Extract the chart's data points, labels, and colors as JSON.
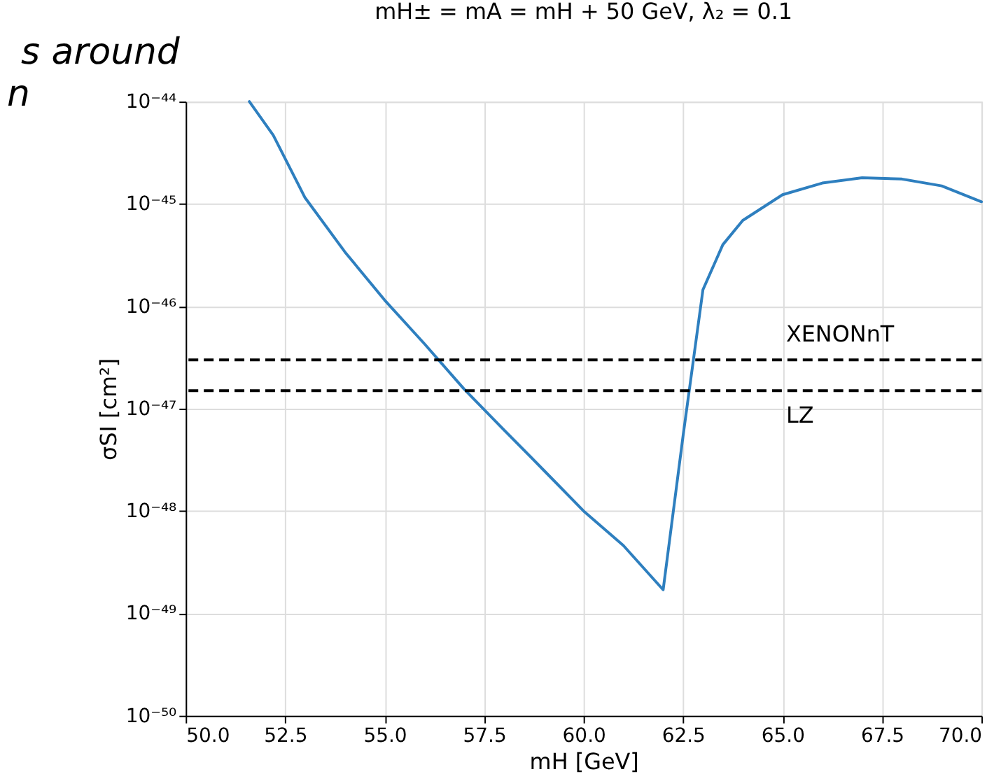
{
  "chart_data": {
    "type": "line",
    "title": "mH± = mA = mH + 50 GeV, λ₂ = 0.1",
    "xlabel": "mH [GeV]",
    "ylabel": "σSI [cm²]",
    "annotations": [
      "s around",
      "n"
    ],
    "x": [
      51.6,
      52.2,
      53.0,
      54.0,
      55.0,
      56.0,
      57.0,
      58.0,
      59.0,
      60.0,
      61.0,
      62.0,
      62.5,
      63.0,
      63.5,
      64.0,
      65.0,
      66.0,
      67.0,
      68.0,
      69.0,
      70.0
    ],
    "series": [
      {
        "color": "#2e7fbf",
        "values": [
          1e-44,
          4.7e-45,
          1.15e-45,
          3.4e-46,
          1.15e-46,
          4.3e-47,
          1.55e-47,
          6.2e-48,
          2.5e-48,
          1e-48,
          4.6e-49,
          1.7e-49,
          5.4e-48,
          1.45e-46,
          4e-46,
          6.9e-46,
          1.23e-45,
          1.6e-45,
          1.8e-45,
          1.75e-45,
          1.5e-45,
          1.05e-45
        ]
      }
    ],
    "ref_lines": [
      {
        "axis": "y",
        "value": 3e-47,
        "label": "XENONnT",
        "color": "#000000",
        "line_style": "dashed"
      },
      {
        "axis": "y",
        "value": 1.5e-47,
        "label": "LZ",
        "color": "#000000",
        "line_style": "dashed"
      }
    ],
    "log": "y",
    "grid": true,
    "xlim": [
      50,
      70
    ],
    "xticks": [
      {
        "value": 50,
        "label": "50.0"
      },
      {
        "value": 52.5,
        "label": "52.5"
      },
      {
        "value": 55,
        "label": "55.0"
      },
      {
        "value": 57.5,
        "label": "57.5"
      },
      {
        "value": 60,
        "label": "60.0"
      },
      {
        "value": 62.5,
        "label": "62.5"
      },
      {
        "value": 65,
        "label": "65.0"
      },
      {
        "value": 67.5,
        "label": "67.5"
      },
      {
        "value": 70,
        "label": "70.0"
      }
    ],
    "ylim": [
      1e-50,
      1e-44
    ],
    "yticks": [
      {
        "value": 1e-50,
        "label": "10⁻⁵⁰"
      },
      {
        "value": 1e-49,
        "label": "10⁻⁴⁹"
      },
      {
        "value": 1e-48,
        "label": "10⁻⁴⁸"
      },
      {
        "value": 1e-47,
        "label": "10⁻⁴⁷"
      },
      {
        "value": 1e-46,
        "label": "10⁻⁴⁶"
      },
      {
        "value": 1e-45,
        "label": "10⁻⁴⁵"
      },
      {
        "value": 1e-44,
        "label": "10⁻⁴⁴"
      }
    ]
  }
}
